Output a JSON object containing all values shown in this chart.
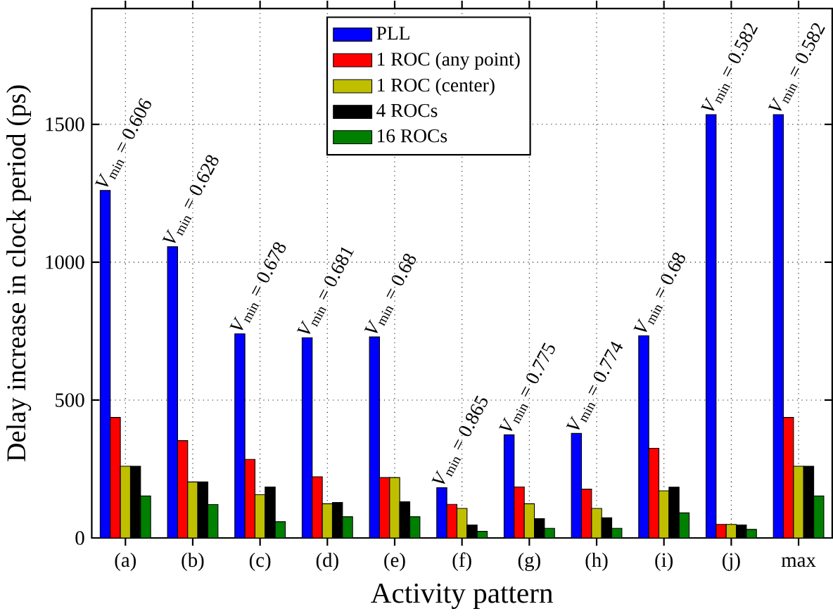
{
  "chart_data": {
    "type": "bar",
    "xlabel": "Activity pattern",
    "ylabel": "Delay increase in clock period (ps)",
    "categories": [
      "(a)",
      "(b)",
      "(c)",
      "(d)",
      "(e)",
      "(f)",
      "(g)",
      "(h)",
      "(i)",
      "(j)",
      "max"
    ],
    "series": [
      {
        "name": "PLL",
        "color": "#0000ff",
        "values": [
          1260,
          1056,
          740,
          726,
          729,
          182,
          374,
          379,
          733,
          1535,
          1535
        ]
      },
      {
        "name": "1 ROC (any point)",
        "color": "#ff0000",
        "values": [
          437,
          353,
          285,
          222,
          219,
          122,
          185,
          177,
          325,
          49,
          437
        ]
      },
      {
        "name": "1 ROC (center)",
        "color": "#bfbf00",
        "values": [
          260,
          203,
          157,
          124,
          219,
          107,
          124,
          107,
          171,
          49,
          260
        ]
      },
      {
        "name": "4 ROCs",
        "color": "#000000",
        "values": [
          260,
          203,
          185,
          129,
          131,
          47,
          70,
          73,
          184,
          47,
          260
        ]
      },
      {
        "name": "16 ROCs",
        "color": "#008000",
        "values": [
          152,
          121,
          59,
          77,
          77,
          24,
          35,
          35,
          91,
          31,
          152
        ]
      }
    ],
    "ylim": [
      0,
      1920
    ],
    "yticks": [
      0,
      500,
      1000,
      1500
    ],
    "grid": true,
    "legend": "top",
    "annotations": [
      "*V*$_{min}$ = 0.606",
      "*V*$_{min}$ = 0.628",
      "*V*$_{min}$ = 0.678",
      "*V*$_{min}$ = 0.681",
      "*V*$_{min}$ = 0.68",
      "*V*$_{min}$ = 0.865",
      "*V*$_{min}$ = 0.775",
      "*V*$_{min}$ = 0.774",
      "*V*$_{min}$ = 0.68",
      "*V*$_{min}$ = 0.582",
      "*V*$_{min}$ = 0.582"
    ]
  }
}
